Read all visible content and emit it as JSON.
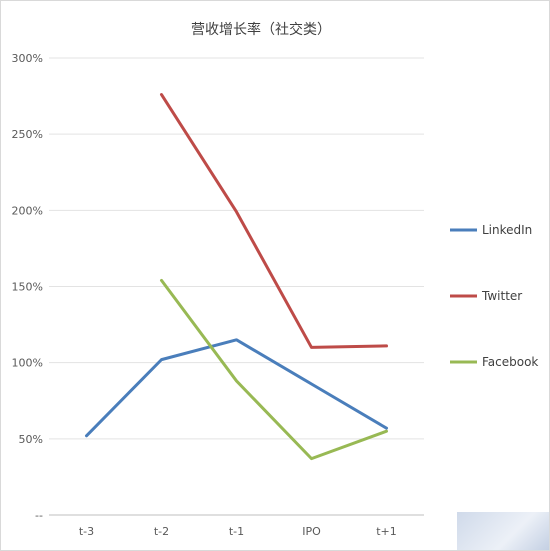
{
  "chart_data": {
    "type": "line",
    "title": "营收增长率（社交类）",
    "categories": [
      "t-3",
      "t-2",
      "t-1",
      "IPO",
      "t+1"
    ],
    "y_tick_labels": [
      "--",
      "50%",
      "100%",
      "150%",
      "200%",
      "250%",
      "300%"
    ],
    "y_tick_values": [
      0,
      50,
      100,
      150,
      200,
      250,
      300
    ],
    "ylim": [
      0,
      300
    ],
    "grid": true,
    "legend_position": "right",
    "series": [
      {
        "name": "LinkedIn",
        "color": "#4a7ebb",
        "values": [
          52,
          102,
          115,
          86,
          57
        ]
      },
      {
        "name": "Twitter",
        "color": "#be4b48",
        "values": [
          null,
          276,
          199,
          110,
          111
        ]
      },
      {
        "name": "Facebook",
        "color": "#98b954",
        "values": [
          null,
          154,
          88,
          37,
          55
        ]
      }
    ]
  }
}
